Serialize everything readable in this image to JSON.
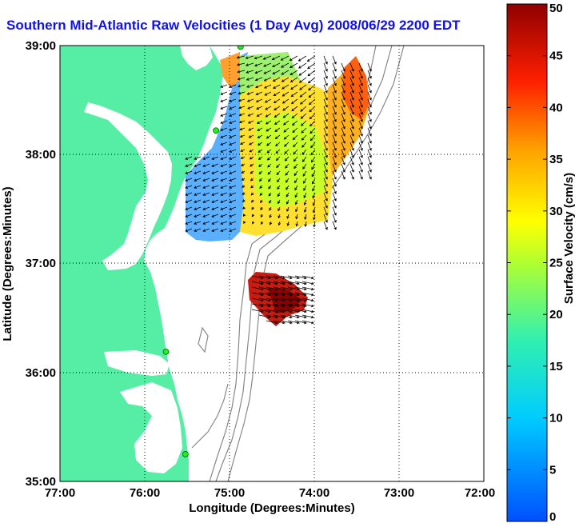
{
  "title": "Southern Mid-Atlantic Raw Velocities (1 Day Avg) 2008/06/29 2200 EDT",
  "map": {
    "xlabel": "Longitude (Degrees:Minutes)",
    "ylabel": "Latitude (Degrees:Minutes)",
    "lon_ticks": [
      "77:00",
      "76:00",
      "75:00",
      "74:00",
      "73:00",
      "72:00"
    ],
    "lat_ticks": [
      "39:00",
      "38:00",
      "37:00",
      "36:00",
      "35:00"
    ],
    "lon_range": [
      -77,
      -72
    ],
    "lat_range": [
      35,
      39
    ],
    "land_color": "#55eea4",
    "water_color": "#ffffff",
    "grid": "dotted"
  },
  "colorbar": {
    "label": "Surface Velocity (cm/s)",
    "ticks": [
      "0",
      "5",
      "10",
      "15",
      "20",
      "25",
      "30",
      "35",
      "40",
      "45",
      "50"
    ],
    "range": [
      0,
      50
    ],
    "colormap": "jet"
  },
  "stations": [
    {
      "lon": -74.87,
      "lat": 38.99
    },
    {
      "lon": -75.16,
      "lat": 38.22
    },
    {
      "lon": -75.75,
      "lat": 36.19
    },
    {
      "lon": -75.52,
      "lat": 35.25
    }
  ],
  "velocity_regions": [
    {
      "name": "north-patch",
      "speed_cm_s": 22
    },
    {
      "name": "south-patch",
      "speed_cm_s": 48
    }
  ]
}
